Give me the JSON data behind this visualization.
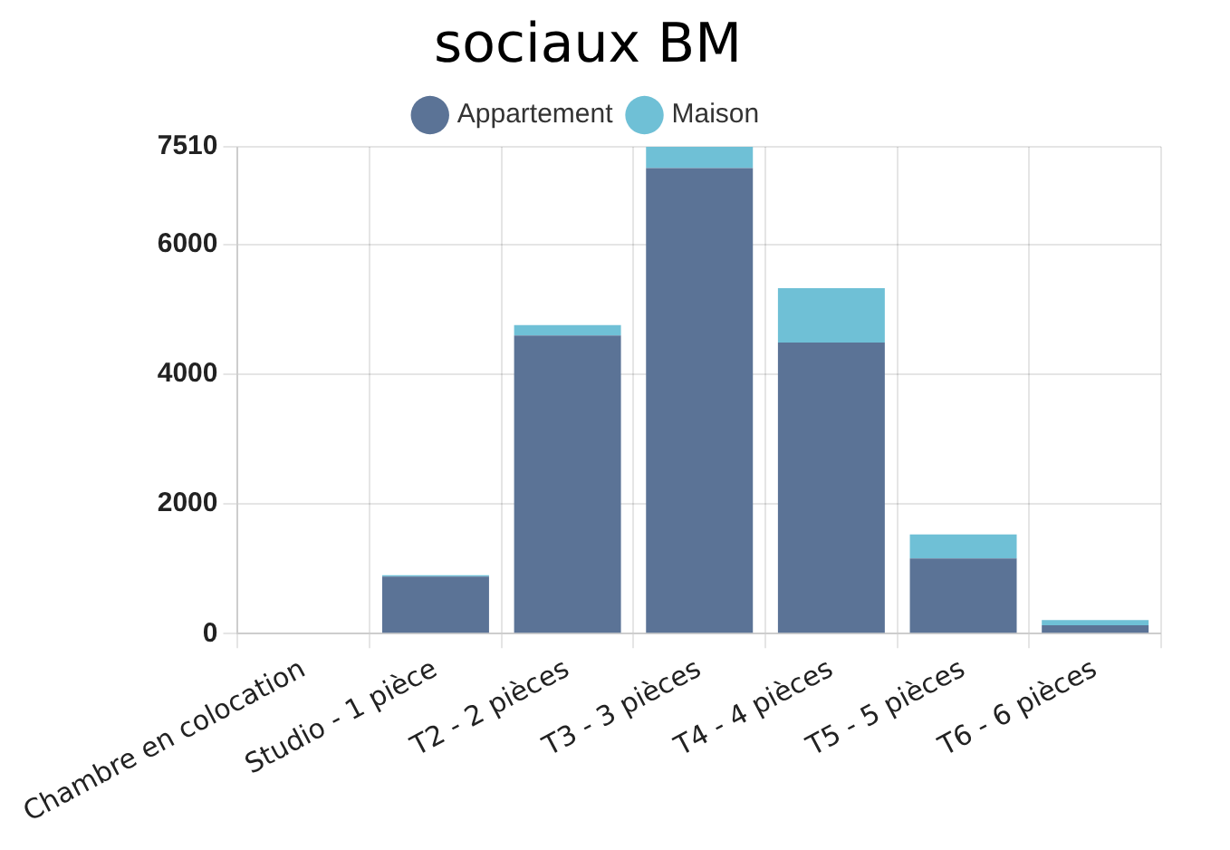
{
  "chart_data": {
    "type": "bar",
    "title": "sociaux BM",
    "stacked": true,
    "categories": [
      "Chambre en colocation",
      "Studio - 1 pièce",
      "T2 - 2 pièces",
      "T3 - 3 pièces",
      "T4 - 4 pièces",
      "T5 - 5 pièces",
      "T6 - 6 pièces"
    ],
    "series": [
      {
        "name": "Appartement",
        "color": "#5b7396",
        "values": [
          0,
          880,
          4600,
          7180,
          4490,
          1160,
          130
        ]
      },
      {
        "name": "Maison",
        "color": "#6fc0d6",
        "values": [
          0,
          20,
          160,
          330,
          840,
          370,
          80
        ]
      }
    ],
    "ylim": [
      0,
      7510
    ],
    "yticks": [
      0,
      2000,
      4000,
      6000,
      7510
    ],
    "grid": true,
    "legend": "top"
  }
}
